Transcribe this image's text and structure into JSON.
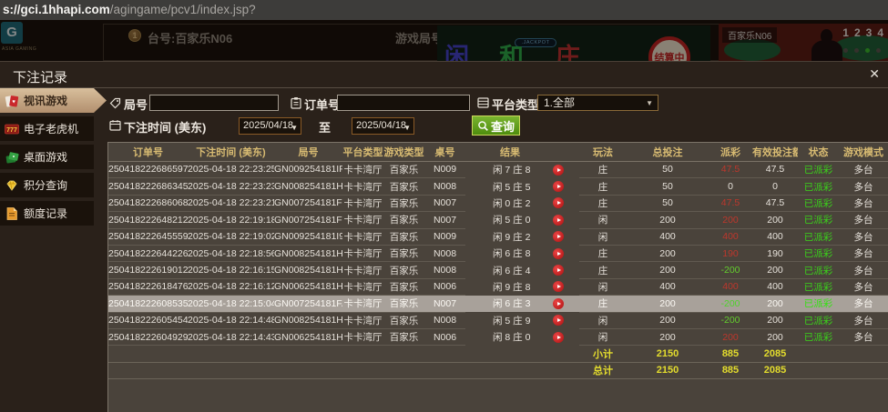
{
  "url_bar": {
    "prefix": "s://",
    "host": "gci.1hhapi.com",
    "path": "/agingame/pcv1/index.jsp?"
  },
  "game_header": {
    "logo_letter": "G",
    "logo_text": "ASIA GAMING",
    "coin_badge": "1",
    "table_label": "台号:百家乐N06",
    "round_label": "游戏局号:GN006254181IB",
    "bet_player": "闲",
    "bet_tie": "和",
    "bet_banker": "庄",
    "jackpot_label": ".JACKPOT",
    "settling_label": "结算中",
    "video_label": "百家乐N06",
    "video_numbers": [
      "1",
      "2",
      "3",
      "4"
    ]
  },
  "panel": {
    "title": "下注记录"
  },
  "ui": {
    "close_glyph": "✕",
    "dropdown_arrow": "▼"
  },
  "sidebar": {
    "items": [
      {
        "label": "视讯游戏",
        "icon": "video-cards-icon",
        "active": true
      },
      {
        "label": "电子老虎机",
        "icon": "slot-machine-icon",
        "active": false
      },
      {
        "label": "桌面游戏",
        "icon": "table-games-icon",
        "active": false
      },
      {
        "label": "积分查询",
        "icon": "points-gem-icon",
        "active": false
      },
      {
        "label": "额度记录",
        "icon": "credit-record-icon",
        "active": false
      }
    ]
  },
  "filters": {
    "round_label": "局号",
    "round_value": "",
    "order_label": "订单号",
    "order_value": "",
    "platform_label": "平台类型",
    "platform_value": "1.全部",
    "time_label": "下注时间 (美东)",
    "date_from": "2025/04/18",
    "to_label": "至",
    "date_to": "2025/04/18",
    "search_label": "查询"
  },
  "colors": {
    "payout_win_red": "#bd372c",
    "payout_loss_green": "#63cc2e",
    "status_paid_green": "#3ad41a",
    "summary_yellow": "#e3dc2d",
    "header_gold": "#d8bb72",
    "search_button_green": "#5fa31a"
  },
  "table": {
    "headers": [
      "订单号",
      "下注时间 (美东)",
      "局号",
      "平台类型",
      "游戏类型",
      "桌号",
      "结果",
      "玩法",
      "总投注",
      "派彩",
      "有效投注额",
      "状态",
      "游戏模式"
    ],
    "rows": [
      {
        "cells": [
          "250418222686597",
          "2025-04-18 22:23:25",
          "GN009254181IF",
          "卡卡湾厅",
          "百家乐",
          "N009",
          "闲 7 庄 8",
          "庄",
          "50",
          "47.5",
          "47.5",
          "已派彩",
          "多台"
        ],
        "payout_class": "red",
        "highlight": false
      },
      {
        "cells": [
          "250418222686345",
          "2025-04-18 22:23:23",
          "GN008254181HK",
          "卡卡湾厅",
          "百家乐",
          "N008",
          "闲 5 庄 5",
          "庄",
          "50",
          "0",
          "0",
          "已派彩",
          "多台"
        ],
        "payout_class": "plain",
        "highlight": false
      },
      {
        "cells": [
          "250418222686068",
          "2025-04-18 22:23:21",
          "GN007254181FL",
          "卡卡湾厅",
          "百家乐",
          "N007",
          "闲 0 庄 2",
          "庄",
          "50",
          "47.5",
          "47.5",
          "已派彩",
          "多台"
        ],
        "payout_class": "red",
        "highlight": false
      },
      {
        "cells": [
          "250418222648212",
          "2025-04-18 22:19:18",
          "GN007254181FG",
          "卡卡湾厅",
          "百家乐",
          "N007",
          "闲 5 庄 0",
          "闲",
          "200",
          "200",
          "200",
          "已派彩",
          "多台"
        ],
        "payout_class": "red",
        "highlight": false
      },
      {
        "cells": [
          "250418222645559",
          "2025-04-18 22:19:02",
          "GN009254181I9",
          "卡卡湾厅",
          "百家乐",
          "N009",
          "闲 9 庄 2",
          "闲",
          "400",
          "400",
          "400",
          "已派彩",
          "多台"
        ],
        "payout_class": "red",
        "highlight": false
      },
      {
        "cells": [
          "250418222644226",
          "2025-04-18 22:18:56",
          "GN008254181HE",
          "卡卡湾厅",
          "百家乐",
          "N008",
          "闲 6 庄 8",
          "庄",
          "200",
          "190",
          "190",
          "已派彩",
          "多台"
        ],
        "payout_class": "red",
        "highlight": false
      },
      {
        "cells": [
          "250418222619012",
          "2025-04-18 22:16:15",
          "GN008254181HA",
          "卡卡湾厅",
          "百家乐",
          "N008",
          "闲 6 庄 4",
          "庄",
          "200",
          "-200",
          "200",
          "已派彩",
          "多台"
        ],
        "payout_class": "green",
        "highlight": false
      },
      {
        "cells": [
          "250418222618476",
          "2025-04-18 22:16:12",
          "GN006254181HZ",
          "卡卡湾厅",
          "百家乐",
          "N006",
          "闲 9 庄 8",
          "闲",
          "400",
          "400",
          "400",
          "已派彩",
          "多台"
        ],
        "payout_class": "red",
        "highlight": false
      },
      {
        "cells": [
          "250418222608535",
          "2025-04-18 22:15:04",
          "GN007254181FA",
          "卡卡湾厅",
          "百家乐",
          "N007",
          "闲 6 庄 3",
          "庄",
          "200",
          "-200",
          "200",
          "已派彩",
          "多台"
        ],
        "payout_class": "green",
        "highlight": true
      },
      {
        "cells": [
          "250418222605454",
          "2025-04-18 22:14:48",
          "GN008254181H8",
          "卡卡湾厅",
          "百家乐",
          "N008",
          "闲 5 庄 9",
          "闲",
          "200",
          "-200",
          "200",
          "已派彩",
          "多台"
        ],
        "payout_class": "green",
        "highlight": false
      },
      {
        "cells": [
          "250418222604929",
          "2025-04-18 22:14:43",
          "GN006254181HX",
          "卡卡湾厅",
          "百家乐",
          "N006",
          "闲 8 庄 0",
          "闲",
          "200",
          "200",
          "200",
          "已派彩",
          "多台"
        ],
        "payout_class": "red",
        "highlight": false
      }
    ],
    "subtotal": {
      "label": "小计",
      "total_bet": "2150",
      "payout": "885",
      "valid_bet": "2085"
    },
    "total": {
      "label": "总计",
      "total_bet": "2150",
      "payout": "885",
      "valid_bet": "2085"
    }
  }
}
